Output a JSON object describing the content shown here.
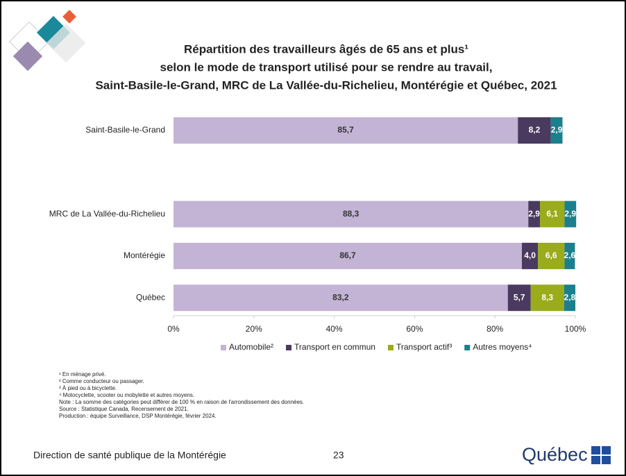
{
  "chart_data": {
    "type": "stacked-bar-horizontal",
    "title": [
      "Répartition des travailleurs âgés de 65 ans et plus¹",
      "selon le mode de transport utilisé pour se rendre au travail,",
      "Saint-Basile-le-Grand, MRC de La Vallée-du-Richelieu, Montérégie et Québec, 2021"
    ],
    "categories": [
      "Saint-Basile-le-Grand",
      null,
      "MRC de La Vallée-du-Richelieu",
      "Montérégie",
      "Québec"
    ],
    "series": [
      {
        "name": "Automobile²",
        "color": "#c3b4d5",
        "values": [
          85.7,
          null,
          88.3,
          86.7,
          83.2
        ],
        "value_labels": [
          "85,7",
          null,
          "88,3",
          "86,7",
          "83,2"
        ]
      },
      {
        "name": "Transport en commun",
        "color": "#4a3a5f",
        "values": [
          8.2,
          null,
          2.9,
          4.0,
          5.7
        ],
        "value_labels": [
          "8,2",
          null,
          "2,9",
          "4,0",
          "5,7"
        ]
      },
      {
        "name": "Transport actif³",
        "color": "#9aab1c",
        "values": [
          null,
          null,
          6.1,
          6.6,
          8.3
        ],
        "value_labels": [
          null,
          null,
          "6,1",
          "6,6",
          "8,3"
        ]
      },
      {
        "name": "Autres moyens⁴",
        "color": "#1b7f8d",
        "values": [
          2.9,
          null,
          2.9,
          2.6,
          2.8
        ],
        "value_labels": [
          "2,9",
          null,
          "2,9",
          "2,6",
          "2,8"
        ]
      }
    ],
    "xlim": [
      0,
      100
    ],
    "xticks": [
      {
        "value": 0,
        "label": "0%"
      },
      {
        "value": 20,
        "label": "20%"
      },
      {
        "value": 40,
        "label": "40%"
      },
      {
        "value": 60,
        "label": "60%"
      },
      {
        "value": 80,
        "label": "80%"
      },
      {
        "value": 100,
        "label": "100%"
      }
    ],
    "legend": "bottom"
  },
  "footnotes": [
    "¹ En ménage privé.",
    "² Comme conducteur ou passager.",
    "³ À pied ou à bicyclette.",
    "⁴ Motocyclette, scooter ou mobylette et autres moyens.",
    "Note : La somme des catégories peut différer de 100 % en raison de l'arrondissement des données.",
    "Source : Statistique Canada, Recensement de 2021.",
    "Production : équipe Surveillance, DSP Montérégie, février 2024."
  ],
  "footer": {
    "organization": "Direction de santé publique de la Montérégie",
    "page": "23",
    "logo": "Québec"
  }
}
